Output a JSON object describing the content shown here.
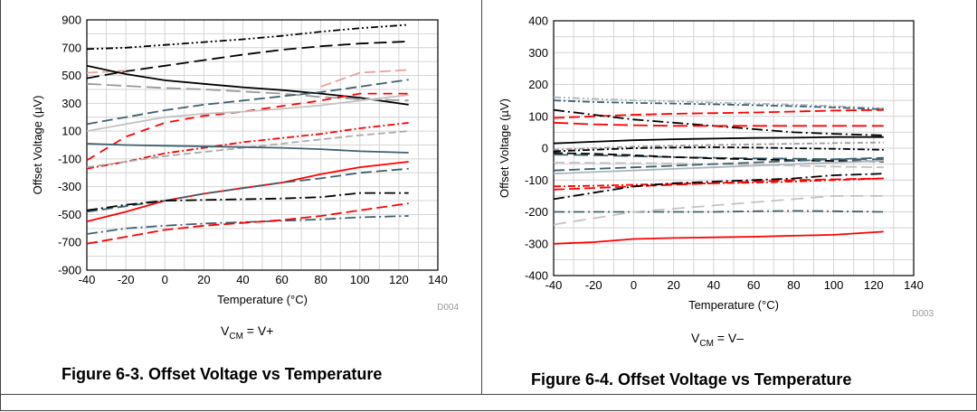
{
  "figures": [
    {
      "id": "fig63",
      "caption": "Figure 6-3. Offset Voltage vs Temperature",
      "condition": {
        "prefix": "V",
        "sub": "CM",
        "suffix": " = V+"
      },
      "code": "D004"
    },
    {
      "id": "fig64",
      "caption": "Figure 6-4. Offset Voltage vs Temperature",
      "condition": {
        "prefix": "V",
        "sub": "CM",
        "suffix": " = V–"
      },
      "code": "D003"
    }
  ],
  "chart_data": [
    {
      "type": "line",
      "xlabel": "Temperature (°C)",
      "ylabel": "Offset Voltage (µV)",
      "xlim": [
        -40,
        140
      ],
      "ylim": [
        -900,
        900
      ],
      "xticks": [
        -40,
        -20,
        0,
        20,
        40,
        60,
        80,
        100,
        120,
        140
      ],
      "yticks": [
        -900,
        -700,
        -500,
        -300,
        -100,
        100,
        300,
        500,
        700,
        900
      ],
      "grid": true,
      "x": [
        -40,
        -20,
        0,
        20,
        40,
        60,
        80,
        100,
        125
      ],
      "series": [
        {
          "color": "#000000",
          "dash": "8 3 2 3 2 3",
          "values": [
            690,
            700,
            720,
            740,
            760,
            785,
            815,
            840,
            865
          ]
        },
        {
          "color": "#000000",
          "dash": "14 6",
          "values": [
            480,
            530,
            570,
            610,
            650,
            685,
            710,
            730,
            745
          ]
        },
        {
          "color": "#e8a0a0",
          "dash": "12 5",
          "values": [
            520,
            535,
            null,
            null,
            null,
            null,
            420,
            520,
            540
          ]
        },
        {
          "color": "#000000",
          "dash": "",
          "values": [
            570,
            510,
            465,
            440,
            415,
            395,
            370,
            340,
            290
          ]
        },
        {
          "color": "#9a9a9a",
          "dash": "16 6",
          "values": [
            440,
            425,
            410,
            400,
            385,
            370,
            345,
            330,
            320
          ]
        },
        {
          "color": "#3d6070",
          "dash": "12 5",
          "values": [
            150,
            200,
            250,
            290,
            320,
            350,
            380,
            420,
            470
          ]
        },
        {
          "color": "#ff0000",
          "dash": "10 7",
          "values": [
            -110,
            60,
            160,
            210,
            240,
            280,
            320,
            370,
            370
          ]
        },
        {
          "color": "#c2c2c2",
          "dash": "",
          "values": [
            100,
            150,
            200,
            225,
            240,
            260,
            285,
            320,
            360
          ]
        },
        {
          "color": "#ff0000",
          "dash": "8 3 2 3",
          "values": [
            -170,
            -120,
            -60,
            -20,
            20,
            50,
            80,
            120,
            160
          ]
        },
        {
          "color": "#aaaaaa",
          "dash": "8 4",
          "values": [
            -160,
            -120,
            -80,
            -50,
            -20,
            10,
            40,
            70,
            100
          ]
        },
        {
          "color": "#3d6070",
          "dash": "",
          "values": [
            10,
            0,
            -5,
            -10,
            -15,
            -20,
            -30,
            -45,
            -55
          ]
        },
        {
          "color": "#ff0000",
          "dash": "",
          "values": [
            -550,
            -480,
            -400,
            -350,
            -310,
            -270,
            -210,
            -160,
            -120
          ]
        },
        {
          "color": "#3d6070",
          "dash": "12 5",
          "values": [
            -480,
            -440,
            -400,
            -350,
            -310,
            -270,
            -240,
            -200,
            -170
          ]
        },
        {
          "color": "#000000",
          "dash": "12 4 2 4",
          "values": [
            -470,
            -430,
            -400,
            -395,
            -390,
            -385,
            -375,
            -345,
            -345
          ]
        },
        {
          "color": "#3d6070",
          "dash": "12 4 2 4",
          "values": [
            -640,
            -600,
            -580,
            -565,
            -555,
            -545,
            -535,
            -520,
            -510
          ]
        },
        {
          "color": "#ff0000",
          "dash": "12 5",
          "values": [
            -710,
            -660,
            -610,
            -580,
            -560,
            -540,
            -510,
            -470,
            -420
          ]
        }
      ]
    },
    {
      "type": "line",
      "xlabel": "Temperature (°C)",
      "ylabel": "Offset Voltage (µV)",
      "xlim": [
        -40,
        140
      ],
      "ylim": [
        -400,
        400
      ],
      "xticks": [
        -40,
        -20,
        0,
        20,
        40,
        60,
        80,
        100,
        120,
        140
      ],
      "yticks": [
        -400,
        -300,
        -200,
        -100,
        0,
        100,
        200,
        300,
        400
      ],
      "grid": true,
      "x": [
        -40,
        -20,
        0,
        20,
        40,
        60,
        80,
        100,
        125
      ],
      "series": [
        {
          "color": "#aab6bc",
          "dash": "8 3 2 3 2 3",
          "values": [
            160,
            155,
            150,
            147,
            143,
            140,
            137,
            132,
            125
          ]
        },
        {
          "color": "#3d6070",
          "dash": "8 3 2 3",
          "values": [
            150,
            145,
            142,
            140,
            138,
            135,
            132,
            128,
            122
          ]
        },
        {
          "color": "#ff0000",
          "dash": "12 5",
          "values": [
            95,
            100,
            105,
            108,
            110,
            112,
            115,
            118,
            120
          ]
        },
        {
          "color": "#000000",
          "dash": "12 4 2 4",
          "values": [
            120,
            105,
            90,
            80,
            70,
            60,
            50,
            45,
            40
          ]
        },
        {
          "color": "#ff0000",
          "dash": "16 6",
          "values": [
            80,
            75,
            72,
            70,
            70,
            70,
            70,
            70,
            70
          ]
        },
        {
          "color": "#000000",
          "dash": "",
          "values": [
            15,
            20,
            25,
            28,
            30,
            32,
            33,
            35,
            35
          ]
        },
        {
          "color": "#999999",
          "dash": "6 3 2 3",
          "values": [
            -5,
            0,
            5,
            8,
            10,
            12,
            14,
            16,
            18
          ]
        },
        {
          "color": "#000000",
          "dash": "8 3 2 3",
          "values": [
            -10,
            -5,
            0,
            2,
            3,
            2,
            0,
            -2,
            -5
          ]
        },
        {
          "color": "#3d6070",
          "dash": "16 6",
          "values": [
            -20,
            -22,
            -25,
            -28,
            -30,
            -32,
            -33,
            -35,
            -35
          ]
        },
        {
          "color": "#000000",
          "dash": "10 5",
          "values": [
            -15,
            -18,
            -22,
            -28,
            -32,
            -35,
            -38,
            -40,
            -42
          ]
        },
        {
          "color": "#c2c2c2",
          "dash": "12 5",
          "values": [
            -45,
            -46,
            -47,
            -48,
            -50,
            -52,
            -55,
            -58,
            -60
          ]
        },
        {
          "color": "#3d6070",
          "dash": "12 5",
          "values": [
            -70,
            -65,
            -60,
            -55,
            -50,
            -45,
            -40,
            -35,
            -30
          ]
        },
        {
          "color": "#aab6bc",
          "dash": "",
          "values": [
            -80,
            -75,
            -70,
            -65,
            -60,
            -55,
            -50,
            -45,
            -40
          ]
        },
        {
          "color": "#ff0000",
          "dash": "8 3 2 3",
          "values": [
            -120,
            -118,
            -115,
            -112,
            -110,
            -108,
            -105,
            -100,
            -95
          ]
        },
        {
          "color": "#ff0000",
          "dash": "12 5",
          "values": [
            -130,
            -125,
            -120,
            -115,
            -110,
            -105,
            -100,
            -98,
            -95
          ]
        },
        {
          "color": "#000000",
          "dash": "12 4 2 4",
          "values": [
            -160,
            -140,
            -120,
            -110,
            -105,
            -100,
            -95,
            -85,
            -80
          ]
        },
        {
          "color": "#3d6070",
          "dash": "12 4 2 4",
          "values": [
            -200,
            -200,
            -200,
            -200,
            -200,
            -198,
            -197,
            -198,
            -200
          ]
        },
        {
          "color": "#c2c2c2",
          "dash": "14 8",
          "values": [
            -240,
            -220,
            -200,
            -190,
            -180,
            -170,
            -160,
            -150,
            -150
          ]
        },
        {
          "color": "#ff0000",
          "dash": "",
          "values": [
            -300,
            -295,
            -285,
            -282,
            -280,
            -278,
            -275,
            -272,
            -262
          ]
        }
      ]
    }
  ]
}
